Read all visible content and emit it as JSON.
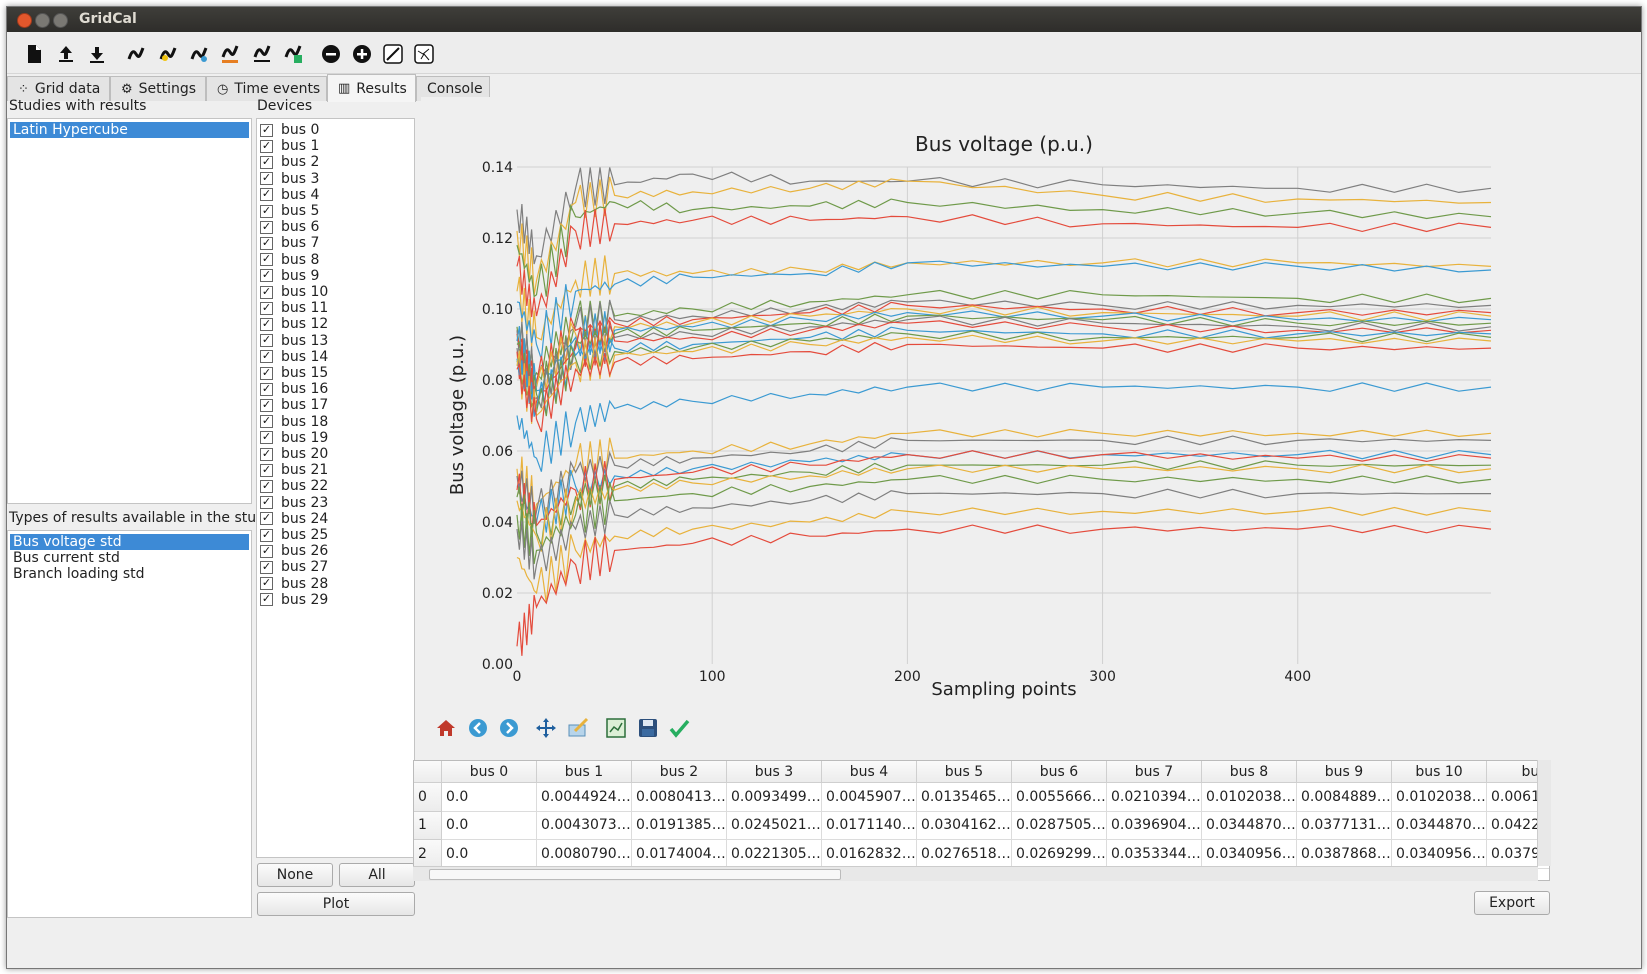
{
  "window": {
    "title": "GridCal"
  },
  "tabs": [
    {
      "label": "Grid data",
      "icon": "nodes-icon"
    },
    {
      "label": "Settings",
      "icon": "gear-icon"
    },
    {
      "label": "Time events",
      "icon": "clock-icon"
    },
    {
      "label": "Results",
      "icon": "bar-chart-icon"
    },
    {
      "label": "Console",
      "icon": ""
    }
  ],
  "toolbar": {
    "icons": [
      "new-file-icon",
      "upload-icon",
      "download-icon",
      "power-flow-icon",
      "power-flow-yellow-icon",
      "short-circuit-icon",
      "time-series-icon",
      "voltage-collapse-icon",
      "monte-carlo-icon",
      "remove-icon",
      "add-icon",
      "line-edit-icon",
      "grid-layout-icon"
    ]
  },
  "studies": {
    "label": "Studies with results",
    "items": [
      "Latin Hypercube"
    ],
    "selected": 0
  },
  "result_types": {
    "label": "Types of results available in the study",
    "items": [
      "Bus voltage std",
      "Bus current std",
      "Branch loading std"
    ],
    "selected": 0
  },
  "devices": {
    "label": "Devices",
    "items": [
      "bus 0",
      "bus 1",
      "bus 2",
      "bus 3",
      "bus 4",
      "bus 5",
      "bus 6",
      "bus 7",
      "bus 8",
      "bus 9",
      "bus 10",
      "bus 11",
      "bus 12",
      "bus 13",
      "bus 14",
      "bus 15",
      "bus 16",
      "bus 17",
      "bus 18",
      "bus 19",
      "bus 20",
      "bus 21",
      "bus 22",
      "bus 23",
      "bus 24",
      "bus 25",
      "bus 26",
      "bus 27",
      "bus 28",
      "bus 29"
    ],
    "checkmark": "✓",
    "none_label": "None",
    "all_label": "All",
    "plot_label": "Plot"
  },
  "chart_data": {
    "type": "line",
    "title": "Bus voltage (p.u.)",
    "xlabel": "Sampling points",
    "ylabel": "Bus voltage (p.u.)",
    "xlim": [
      0,
      499
    ],
    "ylim": [
      0,
      0.14
    ],
    "xticks": [
      "0",
      "100",
      "200",
      "300",
      "400"
    ],
    "yticks": [
      "0.00",
      "0.02",
      "0.04",
      "0.06",
      "0.08",
      "0.10",
      "0.12",
      "0.14"
    ],
    "grid": true,
    "x_points": [
      0,
      10,
      30,
      50,
      90,
      150,
      200,
      300,
      400,
      499
    ],
    "series": [
      {
        "color": "#7f7f7f",
        "values": [
          0.128,
          0.115,
          0.134,
          0.135,
          0.138,
          0.136,
          0.136,
          0.135,
          0.134,
          0.134
        ]
      },
      {
        "color": "#e8b23c",
        "values": [
          0.122,
          0.108,
          0.13,
          0.132,
          0.133,
          0.134,
          0.136,
          0.132,
          0.131,
          0.13
        ]
      },
      {
        "color": "#6f9a4a",
        "values": [
          0.118,
          0.104,
          0.126,
          0.13,
          0.128,
          0.129,
          0.13,
          0.128,
          0.127,
          0.126
        ]
      },
      {
        "color": "#e44b3c",
        "values": [
          0.112,
          0.098,
          0.122,
          0.124,
          0.125,
          0.125,
          0.126,
          0.124,
          0.123,
          0.123
        ]
      },
      {
        "color": "#e8b23c",
        "values": [
          0.105,
          0.092,
          0.108,
          0.11,
          0.11,
          0.111,
          0.113,
          0.113,
          0.113,
          0.112
        ]
      },
      {
        "color": "#3b9ad2",
        "values": [
          0.102,
          0.09,
          0.105,
          0.107,
          0.109,
          0.11,
          0.113,
          0.112,
          0.112,
          0.111
        ]
      },
      {
        "color": "#6f9a4a",
        "values": [
          0.095,
          0.082,
          0.097,
          0.098,
          0.1,
          0.102,
          0.104,
          0.104,
          0.103,
          0.103
        ]
      },
      {
        "color": "#7f7f7f",
        "values": [
          0.094,
          0.08,
          0.095,
          0.097,
          0.098,
          0.1,
          0.102,
          0.101,
          0.101,
          0.101
        ]
      },
      {
        "color": "#e44b3c",
        "values": [
          0.093,
          0.079,
          0.094,
          0.096,
          0.097,
          0.099,
          0.101,
          0.1,
          0.099,
          0.099
        ]
      },
      {
        "color": "#e8b23c",
        "values": [
          0.092,
          0.078,
          0.093,
          0.095,
          0.096,
          0.098,
          0.1,
          0.099,
          0.098,
          0.098
        ]
      },
      {
        "color": "#3b9ad2",
        "values": [
          0.091,
          0.077,
          0.092,
          0.094,
          0.095,
          0.097,
          0.099,
          0.098,
          0.097,
          0.097
        ]
      },
      {
        "color": "#6f9a4a",
        "values": [
          0.09,
          0.076,
          0.091,
          0.093,
          0.094,
          0.096,
          0.098,
          0.097,
          0.096,
          0.096
        ]
      },
      {
        "color": "#7f7f7f",
        "values": [
          0.089,
          0.075,
          0.09,
          0.092,
          0.093,
          0.095,
          0.097,
          0.096,
          0.095,
          0.095
        ]
      },
      {
        "color": "#e44b3c",
        "values": [
          0.088,
          0.074,
          0.089,
          0.091,
          0.092,
          0.094,
          0.096,
          0.095,
          0.094,
          0.094
        ]
      },
      {
        "color": "#3b9ad2",
        "values": [
          0.086,
          0.072,
          0.087,
          0.089,
          0.09,
          0.092,
          0.094,
          0.093,
          0.093,
          0.093
        ]
      },
      {
        "color": "#6f9a4a",
        "values": [
          0.085,
          0.071,
          0.086,
          0.088,
          0.089,
          0.091,
          0.093,
          0.092,
          0.092,
          0.092
        ]
      },
      {
        "color": "#e8b23c",
        "values": [
          0.084,
          0.07,
          0.085,
          0.087,
          0.088,
          0.09,
          0.092,
          0.091,
          0.091,
          0.091
        ]
      },
      {
        "color": "#e44b3c",
        "values": [
          0.083,
          0.069,
          0.083,
          0.085,
          0.086,
          0.088,
          0.09,
          0.089,
          0.089,
          0.089
        ]
      },
      {
        "color": "#3b9ad2",
        "values": [
          0.07,
          0.058,
          0.068,
          0.072,
          0.074,
          0.076,
          0.078,
          0.078,
          0.078,
          0.078
        ]
      },
      {
        "color": "#e8b23c",
        "values": [
          0.055,
          0.045,
          0.056,
          0.058,
          0.06,
          0.062,
          0.065,
          0.065,
          0.065,
          0.065
        ]
      },
      {
        "color": "#7f7f7f",
        "values": [
          0.053,
          0.043,
          0.054,
          0.056,
          0.058,
          0.06,
          0.063,
          0.063,
          0.063,
          0.063
        ]
      },
      {
        "color": "#3b9ad2",
        "values": [
          0.05,
          0.04,
          0.05,
          0.053,
          0.055,
          0.057,
          0.059,
          0.059,
          0.059,
          0.059
        ]
      },
      {
        "color": "#e44b3c",
        "values": [
          0.049,
          0.039,
          0.049,
          0.052,
          0.054,
          0.056,
          0.059,
          0.059,
          0.058,
          0.058
        ]
      },
      {
        "color": "#6f9a4a",
        "values": [
          0.047,
          0.037,
          0.047,
          0.05,
          0.052,
          0.054,
          0.056,
          0.056,
          0.056,
          0.056
        ]
      },
      {
        "color": "#e8b23c",
        "values": [
          0.046,
          0.036,
          0.046,
          0.049,
          0.051,
          0.053,
          0.055,
          0.055,
          0.055,
          0.055
        ]
      },
      {
        "color": "#6f9a4a",
        "values": [
          0.042,
          0.032,
          0.042,
          0.046,
          0.048,
          0.05,
          0.052,
          0.052,
          0.052,
          0.052
        ]
      },
      {
        "color": "#7f7f7f",
        "values": [
          0.038,
          0.028,
          0.038,
          0.042,
          0.044,
          0.046,
          0.048,
          0.048,
          0.048,
          0.048
        ]
      },
      {
        "color": "#e8b23c",
        "values": [
          0.03,
          0.02,
          0.032,
          0.036,
          0.038,
          0.04,
          0.043,
          0.043,
          0.043,
          0.043
        ]
      },
      {
        "color": "#e44b3c",
        "values": [
          0.005,
          0.016,
          0.028,
          0.032,
          0.034,
          0.036,
          0.038,
          0.038,
          0.038,
          0.038
        ]
      }
    ]
  },
  "table": {
    "columns": [
      "bus 0",
      "bus 1",
      "bus 2",
      "bus 3",
      "bus 4",
      "bus 5",
      "bus 6",
      "bus 7",
      "bus 8",
      "bus 9",
      "bus 10",
      "bus"
    ],
    "rows": [
      {
        "index": "0",
        "cells": [
          "0.0",
          "0.0044924…",
          "0.0080413…",
          "0.0093499…",
          "0.0045907…",
          "0.0135465…",
          "0.0055666…",
          "0.0210394…",
          "0.0102038…",
          "0.0084889…",
          "0.0102038…",
          "0.0061"
        ]
      },
      {
        "index": "1",
        "cells": [
          "0.0",
          "0.0043073…",
          "0.0191385…",
          "0.0245021…",
          "0.0171140…",
          "0.0304162…",
          "0.0287505…",
          "0.0396904…",
          "0.0344870…",
          "0.0377131…",
          "0.0344870…",
          "0.0422"
        ]
      },
      {
        "index": "2",
        "cells": [
          "0.0",
          "0.0080790…",
          "0.0174004…",
          "0.0221305…",
          "0.0162832…",
          "0.0276518…",
          "0.0269299…",
          "0.0353344…",
          "0.0340956…",
          "0.0387868…",
          "0.0340956…",
          "0.0379"
        ]
      }
    ]
  },
  "export_label": "Export",
  "nav_icons": [
    "home-icon",
    "back-icon",
    "forward-icon",
    "pan-icon",
    "configure-subplots-icon",
    "edit-axis-icon",
    "save-icon",
    "check-icon"
  ]
}
